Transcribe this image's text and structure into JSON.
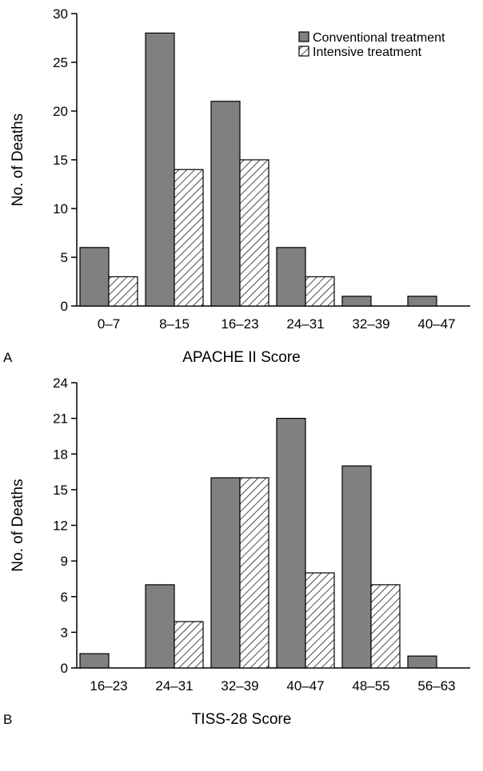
{
  "colors": {
    "conventional": "#808080",
    "stroke": "#000000",
    "hatch": "#000000"
  },
  "chart_data": [
    {
      "panel": "A",
      "type": "bar",
      "categories": [
        "0–7",
        "8–15",
        "16–23",
        "24–31",
        "32–39",
        "40–47"
      ],
      "series": [
        {
          "name": "Conventional treatment",
          "values": [
            6,
            28,
            21,
            6,
            1,
            1
          ]
        },
        {
          "name": "Intensive treatment",
          "values": [
            3,
            14,
            15,
            3,
            0,
            0
          ]
        }
      ],
      "xlabel": "APACHE II Score",
      "ylabel": "No. of Deaths",
      "ylim": [
        0,
        30
      ],
      "yticks": [
        0,
        5,
        10,
        15,
        20,
        25,
        30
      ],
      "legend": {
        "position": "top-right",
        "entries": [
          "Conventional treatment",
          "Intensive treatment"
        ]
      },
      "grid": false
    },
    {
      "panel": "B",
      "type": "bar",
      "categories": [
        "16–23",
        "24–31",
        "32–39",
        "40–47",
        "48–55",
        "56–63"
      ],
      "series": [
        {
          "name": "Conventional treatment",
          "values": [
            1.2,
            7,
            16,
            21,
            17,
            1
          ]
        },
        {
          "name": "Intensive treatment",
          "values": [
            0,
            3.9,
            16,
            8,
            7,
            0
          ]
        }
      ],
      "xlabel": "TISS-28 Score",
      "ylabel": "No. of Deaths",
      "ylim": [
        0,
        24
      ],
      "yticks": [
        0,
        3,
        6,
        9,
        12,
        15,
        18,
        21,
        24
      ],
      "legend": null,
      "grid": false
    }
  ]
}
